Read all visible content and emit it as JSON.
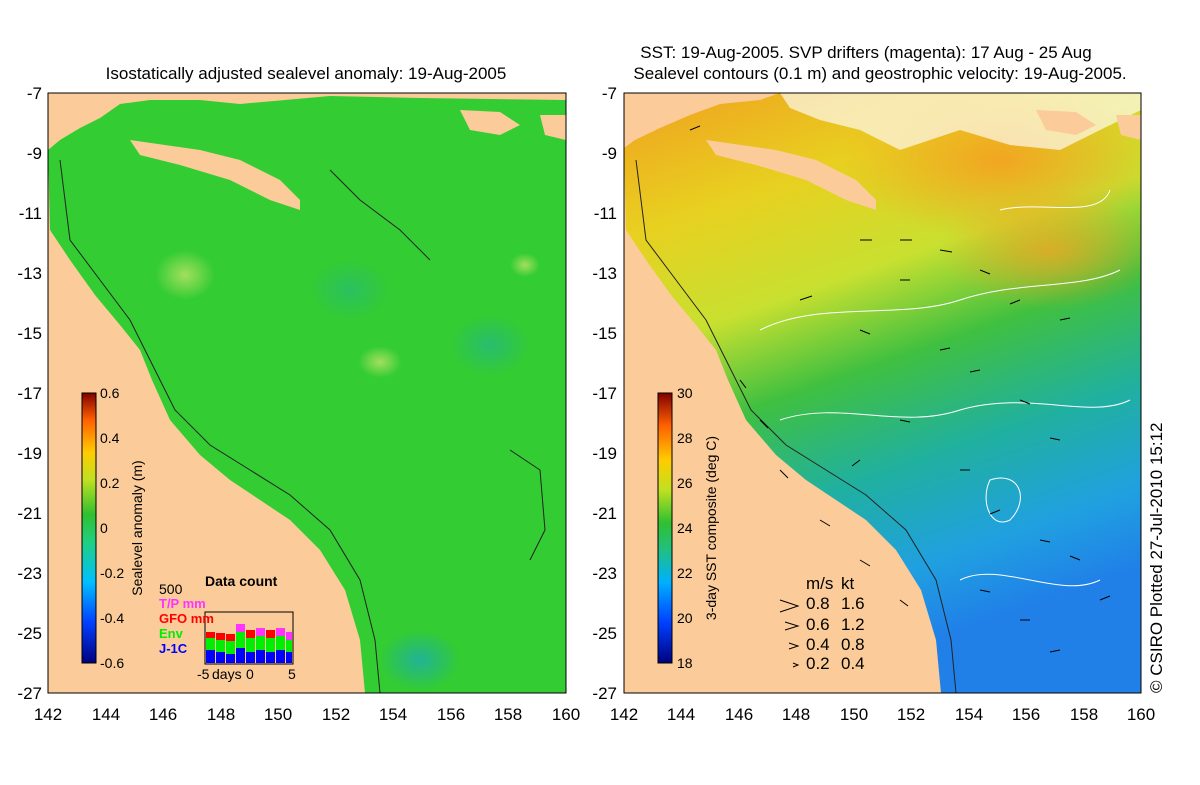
{
  "left_panel": {
    "title": "Isostatically adjusted sealevel anomaly: 19-Aug-2005",
    "colorbar": {
      "label": "Sealevel anomaly (m)",
      "ticks": [
        "0.6",
        "0.4",
        "0.2",
        "0",
        "-0.2",
        "-0.4",
        "-0.6"
      ],
      "range": [
        -0.6,
        0.6
      ]
    },
    "data_count": {
      "title": "Data count",
      "ymax_label": "500",
      "legend": [
        {
          "label": "T/P mm",
          "color": "#ff33ff"
        },
        {
          "label": "GFO mm",
          "color": "#ff0000"
        },
        {
          "label": "Env",
          "color": "#00ee00"
        },
        {
          "label": "J-1C",
          "color": "#0000ff"
        }
      ],
      "xlabel": "days",
      "xticks": [
        "-5",
        "0",
        "5"
      ]
    }
  },
  "right_panel": {
    "title_line1": "SST: 19-Aug-2005. SVP drifters (magenta): 17 Aug - 25 Aug",
    "title_line2": "Sealevel contours (0.1 m) and geostrophic velocity: 19-Aug-2005.",
    "colorbar": {
      "label": "3-day SST composite (deg C)",
      "ticks": [
        "30",
        "28",
        "26",
        "24",
        "22",
        "20",
        "18"
      ],
      "range": [
        18,
        30
      ]
    },
    "velocity_key": {
      "header_ms": "m/s",
      "header_kt": "kt",
      "rows": [
        {
          "ms": "0.8",
          "kt": "1.6"
        },
        {
          "ms": "0.6",
          "kt": "1.2"
        },
        {
          "ms": "0.4",
          "kt": "0.8"
        },
        {
          "ms": "0.2",
          "kt": "0.4"
        }
      ]
    }
  },
  "axes": {
    "lat_ticks": [
      "-7",
      "-9",
      "-11",
      "-13",
      "-15",
      "-17",
      "-19",
      "-21",
      "-23",
      "-25",
      "-27"
    ],
    "lon_ticks": [
      "142",
      "144",
      "146",
      "148",
      "150",
      "152",
      "154",
      "156",
      "158",
      "160"
    ]
  },
  "credit": "© CSIRO Plotted 27-Jul-2010 15:12",
  "colors": {
    "land": "#fbcc99",
    "sea_anomaly": "#33cc33",
    "sst_warm": "#f5a623",
    "sst_cool": "#1fa3e0"
  }
}
